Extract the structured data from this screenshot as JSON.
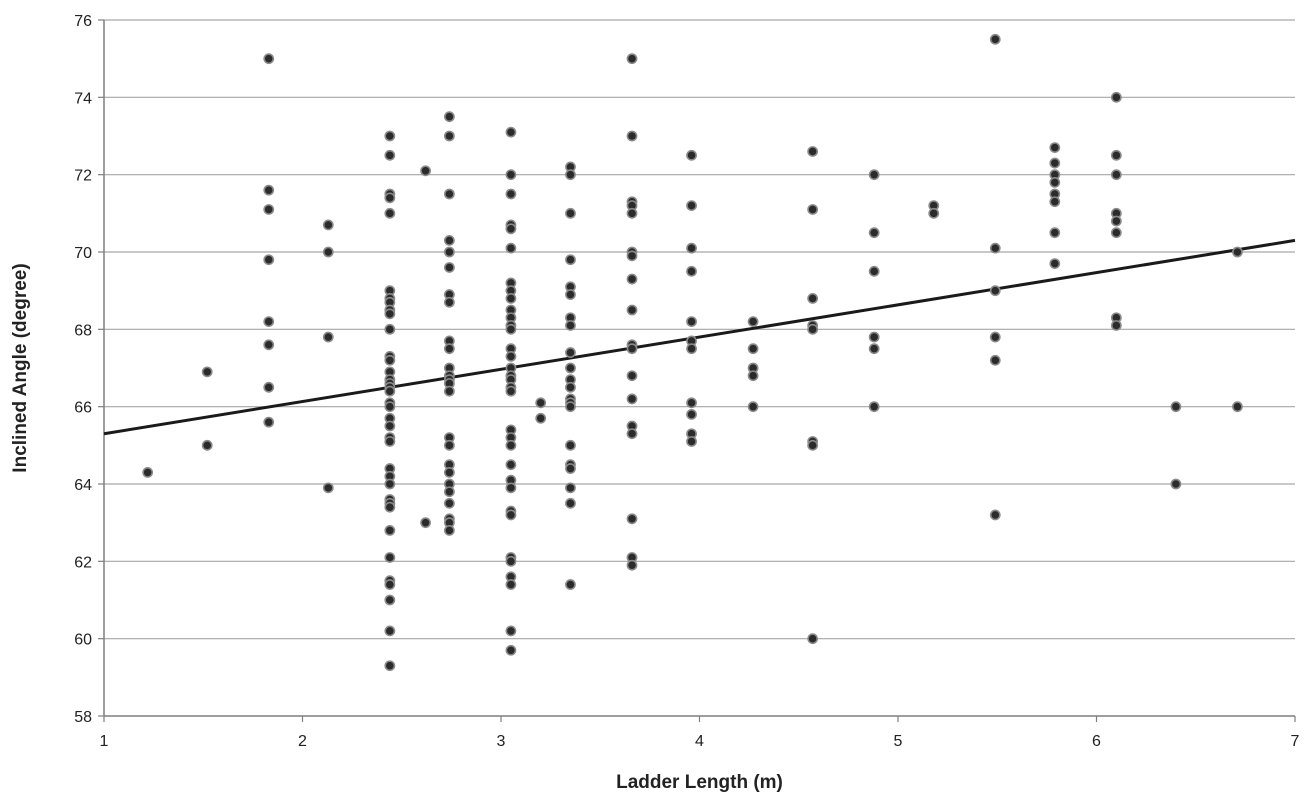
{
  "chart_data": {
    "type": "scatter",
    "title": "",
    "xlabel": "Ladder Length (m)",
    "ylabel": "Inclined Angle (degree)",
    "xlim": [
      1,
      7
    ],
    "ylim": [
      58,
      76
    ],
    "xticks": [
      1,
      2,
      3,
      4,
      5,
      6,
      7
    ],
    "yticks": [
      58,
      60,
      62,
      64,
      66,
      68,
      70,
      72,
      74,
      76
    ],
    "grid": "horizontal",
    "legend": "none",
    "colors": {
      "point_fill": "#2b2b2b",
      "point_stroke": "#8a8a8a",
      "trend_line": "#1a1a1a",
      "grid": "#a6a6a6",
      "axis": "#7f7f7f"
    },
    "trendline": {
      "x": [
        1,
        7
      ],
      "y": [
        65.3,
        70.3
      ]
    },
    "points": [
      [
        1.22,
        64.3
      ],
      [
        1.52,
        66.9
      ],
      [
        1.52,
        65.0
      ],
      [
        1.83,
        75.0
      ],
      [
        1.83,
        71.6
      ],
      [
        1.83,
        71.1
      ],
      [
        1.83,
        69.8
      ],
      [
        1.83,
        68.2
      ],
      [
        1.83,
        67.6
      ],
      [
        1.83,
        66.5
      ],
      [
        1.83,
        65.6
      ],
      [
        2.13,
        70.7
      ],
      [
        2.13,
        70.0
      ],
      [
        2.13,
        67.8
      ],
      [
        2.13,
        63.9
      ],
      [
        2.44,
        73.0
      ],
      [
        2.44,
        72.5
      ],
      [
        2.44,
        71.5
      ],
      [
        2.44,
        71.4
      ],
      [
        2.44,
        71.0
      ],
      [
        2.44,
        69.0
      ],
      [
        2.44,
        68.8
      ],
      [
        2.44,
        68.7
      ],
      [
        2.44,
        68.5
      ],
      [
        2.44,
        68.4
      ],
      [
        2.44,
        68.0
      ],
      [
        2.44,
        67.3
      ],
      [
        2.44,
        67.2
      ],
      [
        2.44,
        66.9
      ],
      [
        2.44,
        66.7
      ],
      [
        2.44,
        66.6
      ],
      [
        2.44,
        66.5
      ],
      [
        2.44,
        66.4
      ],
      [
        2.44,
        66.1
      ],
      [
        2.44,
        66.0
      ],
      [
        2.44,
        65.7
      ],
      [
        2.44,
        65.5
      ],
      [
        2.44,
        65.2
      ],
      [
        2.44,
        65.1
      ],
      [
        2.44,
        64.4
      ],
      [
        2.44,
        64.2
      ],
      [
        2.44,
        64.0
      ],
      [
        2.44,
        63.6
      ],
      [
        2.44,
        63.5
      ],
      [
        2.44,
        63.4
      ],
      [
        2.44,
        62.8
      ],
      [
        2.44,
        62.1
      ],
      [
        2.44,
        61.5
      ],
      [
        2.44,
        61.4
      ],
      [
        2.44,
        61.0
      ],
      [
        2.44,
        60.2
      ],
      [
        2.44,
        59.3
      ],
      [
        2.62,
        72.1
      ],
      [
        2.62,
        63.0
      ],
      [
        2.74,
        73.5
      ],
      [
        2.74,
        73.0
      ],
      [
        2.74,
        71.5
      ],
      [
        2.74,
        70.3
      ],
      [
        2.74,
        70.0
      ],
      [
        2.74,
        69.6
      ],
      [
        2.74,
        68.9
      ],
      [
        2.74,
        68.7
      ],
      [
        2.74,
        67.7
      ],
      [
        2.74,
        67.5
      ],
      [
        2.74,
        67.0
      ],
      [
        2.74,
        66.8
      ],
      [
        2.74,
        66.7
      ],
      [
        2.74,
        66.6
      ],
      [
        2.74,
        66.4
      ],
      [
        2.74,
        65.2
      ],
      [
        2.74,
        65.0
      ],
      [
        2.74,
        64.5
      ],
      [
        2.74,
        64.3
      ],
      [
        2.74,
        64.0
      ],
      [
        2.74,
        63.8
      ],
      [
        2.74,
        63.5
      ],
      [
        2.74,
        63.1
      ],
      [
        2.74,
        63.0
      ],
      [
        2.74,
        62.8
      ],
      [
        3.05,
        73.1
      ],
      [
        3.05,
        72.0
      ],
      [
        3.05,
        71.5
      ],
      [
        3.05,
        70.7
      ],
      [
        3.05,
        70.6
      ],
      [
        3.05,
        70.1
      ],
      [
        3.05,
        69.2
      ],
      [
        3.05,
        69.0
      ],
      [
        3.05,
        68.8
      ],
      [
        3.05,
        68.5
      ],
      [
        3.05,
        68.3
      ],
      [
        3.05,
        68.1
      ],
      [
        3.05,
        68.0
      ],
      [
        3.05,
        67.5
      ],
      [
        3.05,
        67.3
      ],
      [
        3.05,
        67.0
      ],
      [
        3.05,
        66.8
      ],
      [
        3.05,
        66.7
      ],
      [
        3.05,
        66.5
      ],
      [
        3.05,
        66.4
      ],
      [
        3.05,
        65.4
      ],
      [
        3.05,
        65.2
      ],
      [
        3.05,
        65.0
      ],
      [
        3.05,
        64.5
      ],
      [
        3.05,
        64.1
      ],
      [
        3.05,
        63.9
      ],
      [
        3.05,
        63.3
      ],
      [
        3.05,
        63.2
      ],
      [
        3.05,
        62.1
      ],
      [
        3.05,
        62.0
      ],
      [
        3.05,
        61.6
      ],
      [
        3.05,
        61.4
      ],
      [
        3.05,
        60.2
      ],
      [
        3.05,
        59.7
      ],
      [
        3.2,
        66.1
      ],
      [
        3.2,
        65.7
      ],
      [
        3.35,
        72.2
      ],
      [
        3.35,
        72.0
      ],
      [
        3.35,
        71.0
      ],
      [
        3.35,
        69.8
      ],
      [
        3.35,
        69.1
      ],
      [
        3.35,
        68.9
      ],
      [
        3.35,
        68.3
      ],
      [
        3.35,
        68.1
      ],
      [
        3.35,
        67.4
      ],
      [
        3.35,
        67.0
      ],
      [
        3.35,
        66.7
      ],
      [
        3.35,
        66.5
      ],
      [
        3.35,
        66.2
      ],
      [
        3.35,
        66.1
      ],
      [
        3.35,
        66.0
      ],
      [
        3.35,
        65.0
      ],
      [
        3.35,
        64.5
      ],
      [
        3.35,
        64.4
      ],
      [
        3.35,
        63.9
      ],
      [
        3.35,
        63.5
      ],
      [
        3.35,
        61.4
      ],
      [
        3.66,
        75.0
      ],
      [
        3.66,
        73.0
      ],
      [
        3.66,
        71.3
      ],
      [
        3.66,
        71.2
      ],
      [
        3.66,
        71.0
      ],
      [
        3.66,
        70.0
      ],
      [
        3.66,
        69.9
      ],
      [
        3.66,
        69.3
      ],
      [
        3.66,
        68.5
      ],
      [
        3.66,
        67.6
      ],
      [
        3.66,
        67.5
      ],
      [
        3.66,
        66.8
      ],
      [
        3.66,
        66.2
      ],
      [
        3.66,
        65.5
      ],
      [
        3.66,
        65.3
      ],
      [
        3.66,
        63.1
      ],
      [
        3.66,
        62.1
      ],
      [
        3.66,
        61.9
      ],
      [
        3.96,
        72.5
      ],
      [
        3.96,
        71.2
      ],
      [
        3.96,
        70.1
      ],
      [
        3.96,
        69.5
      ],
      [
        3.96,
        68.2
      ],
      [
        3.96,
        67.7
      ],
      [
        3.96,
        67.5
      ],
      [
        3.96,
        66.1
      ],
      [
        3.96,
        65.8
      ],
      [
        3.96,
        65.3
      ],
      [
        3.96,
        65.1
      ],
      [
        4.27,
        68.2
      ],
      [
        4.27,
        67.5
      ],
      [
        4.27,
        67.0
      ],
      [
        4.27,
        66.8
      ],
      [
        4.27,
        66.0
      ],
      [
        4.57,
        72.6
      ],
      [
        4.57,
        71.1
      ],
      [
        4.57,
        68.8
      ],
      [
        4.57,
        68.1
      ],
      [
        4.57,
        68.0
      ],
      [
        4.57,
        65.1
      ],
      [
        4.57,
        65.0
      ],
      [
        4.57,
        60.0
      ],
      [
        4.88,
        72.0
      ],
      [
        4.88,
        70.5
      ],
      [
        4.88,
        69.5
      ],
      [
        4.88,
        67.8
      ],
      [
        4.88,
        67.5
      ],
      [
        4.88,
        66.0
      ],
      [
        5.18,
        71.2
      ],
      [
        5.18,
        71.0
      ],
      [
        5.49,
        75.5
      ],
      [
        5.49,
        70.1
      ],
      [
        5.49,
        69.0
      ],
      [
        5.49,
        67.8
      ],
      [
        5.49,
        67.2
      ],
      [
        5.49,
        63.2
      ],
      [
        5.79,
        72.7
      ],
      [
        5.79,
        72.3
      ],
      [
        5.79,
        72.0
      ],
      [
        5.79,
        71.8
      ],
      [
        5.79,
        71.5
      ],
      [
        5.79,
        71.3
      ],
      [
        5.79,
        70.5
      ],
      [
        5.79,
        69.7
      ],
      [
        6.1,
        74.0
      ],
      [
        6.1,
        72.5
      ],
      [
        6.1,
        72.0
      ],
      [
        6.1,
        71.0
      ],
      [
        6.1,
        70.8
      ],
      [
        6.1,
        70.5
      ],
      [
        6.1,
        68.3
      ],
      [
        6.1,
        68.1
      ],
      [
        6.4,
        66.0
      ],
      [
        6.4,
        64.0
      ],
      [
        6.71,
        70.0
      ],
      [
        6.71,
        66.0
      ]
    ]
  }
}
